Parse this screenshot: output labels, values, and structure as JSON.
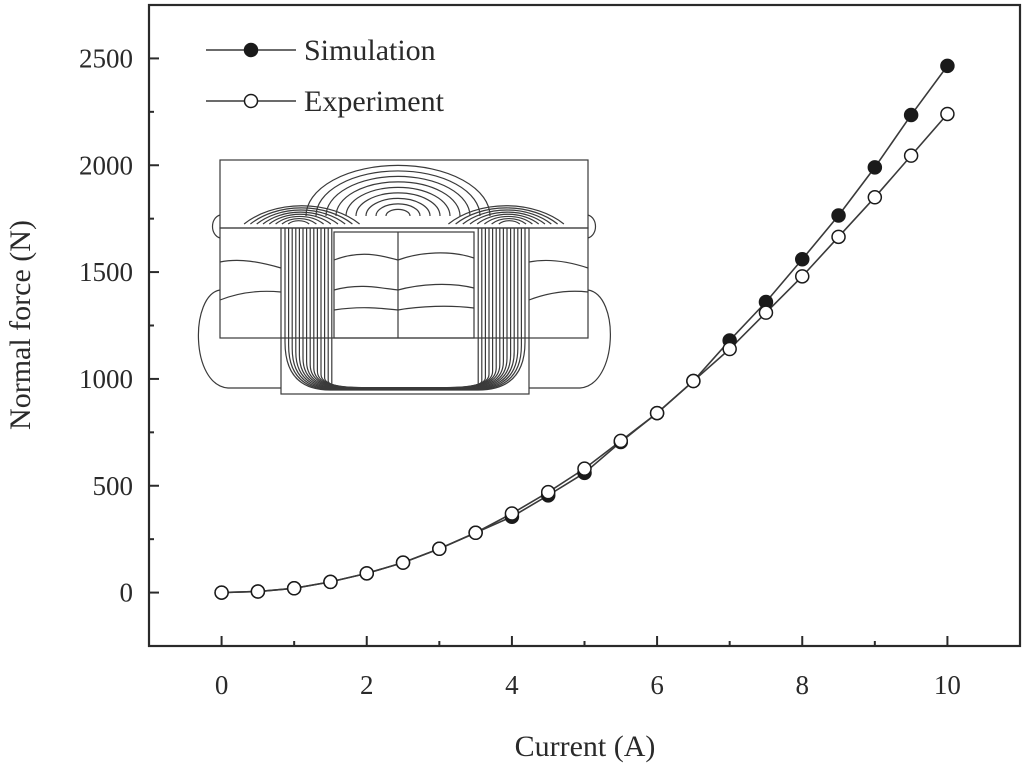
{
  "chart_data": {
    "type": "line",
    "xlabel": "Current (A)",
    "ylabel": "Normal force (N)",
    "xlim": [
      -1,
      11
    ],
    "ylim": [
      -250,
      2750
    ],
    "x_ticks": [
      0,
      2,
      4,
      6,
      8,
      10
    ],
    "y_ticks": [
      0,
      500,
      1000,
      1500,
      2000,
      2500
    ],
    "legend_position": "top-left",
    "grid": false,
    "series": [
      {
        "name": "Simulation",
        "marker": "filled-circle",
        "x": [
          0,
          0.5,
          1,
          1.5,
          2,
          2.5,
          3,
          3.5,
          4,
          4.5,
          5,
          5.5,
          6,
          6.5,
          7,
          7.5,
          8,
          8.5,
          9,
          9.5,
          10
        ],
        "y": [
          0,
          5,
          20,
          50,
          90,
          140,
          205,
          280,
          355,
          455,
          560,
          705,
          840,
          990,
          1180,
          1360,
          1560,
          1765,
          1990,
          2235,
          2465
        ]
      },
      {
        "name": "Experiment",
        "marker": "open-circle",
        "x": [
          0,
          0.5,
          1,
          1.5,
          2,
          2.5,
          3,
          3.5,
          4,
          4.5,
          5,
          5.5,
          6,
          6.5,
          7,
          7.5,
          8,
          8.5,
          9,
          9.5,
          10
        ],
        "y": [
          0,
          5,
          20,
          50,
          90,
          140,
          205,
          280,
          370,
          470,
          580,
          710,
          840,
          990,
          1140,
          1310,
          1480,
          1665,
          1850,
          2045,
          2240
        ]
      }
    ]
  }
}
